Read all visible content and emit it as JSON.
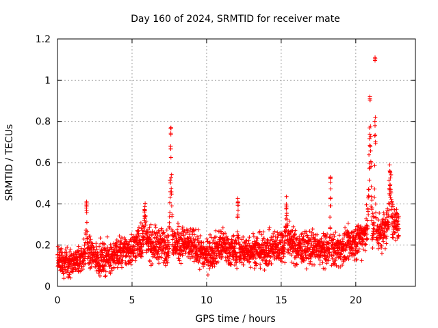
{
  "chart_data": {
    "type": "scatter",
    "title": "Day 160 of 2024, SRMTID for receiver mate",
    "xlabel": "GPS time / hours",
    "ylabel": "SRMTID / TECUs",
    "xlim": [
      0,
      24
    ],
    "ylim": [
      0,
      1.2
    ],
    "x_ticks": [
      0,
      5,
      10,
      15,
      20
    ],
    "x_tick_labels": [
      "0",
      "5",
      "10",
      "15",
      "20"
    ],
    "y_ticks": [
      0,
      0.2,
      0.4,
      0.6,
      0.8,
      1,
      1.2
    ],
    "y_tick_labels": [
      "0",
      "0.2",
      "0.4",
      "0.6",
      "0.8",
      "1",
      "1.2"
    ],
    "grid": true,
    "marker": "+",
    "series": [
      {
        "name": "SRMTID",
        "color": "#ff0000",
        "x_start": 0,
        "x_end": 22.9,
        "samples_per_hour": 120,
        "baseline": [
          [
            0,
            0.12
          ],
          [
            1,
            0.11
          ],
          [
            1.5,
            0.13
          ],
          [
            2,
            0.17
          ],
          [
            2.5,
            0.14
          ],
          [
            3,
            0.13
          ],
          [
            4,
            0.16
          ],
          [
            5,
            0.18
          ],
          [
            5.5,
            0.22
          ],
          [
            6,
            0.21
          ],
          [
            7,
            0.2
          ],
          [
            7.5,
            0.19
          ],
          [
            8,
            0.21
          ],
          [
            9,
            0.2
          ],
          [
            10,
            0.15
          ],
          [
            11,
            0.2
          ],
          [
            12,
            0.16
          ],
          [
            13,
            0.18
          ],
          [
            14,
            0.17
          ],
          [
            15,
            0.2
          ],
          [
            15.5,
            0.23
          ],
          [
            16,
            0.18
          ],
          [
            17,
            0.19
          ],
          [
            18,
            0.17
          ],
          [
            19,
            0.18
          ],
          [
            20,
            0.22
          ],
          [
            20.5,
            0.25
          ],
          [
            21,
            0.3
          ],
          [
            21.5,
            0.25
          ],
          [
            22,
            0.28
          ],
          [
            22.9,
            0.32
          ]
        ],
        "spikes": [
          {
            "x": 1.95,
            "width": 0.06,
            "peak": 0.41
          },
          {
            "x": 5.85,
            "width": 0.1,
            "peak": 0.37
          },
          {
            "x": 7.6,
            "width": 0.1,
            "peak": 0.77
          },
          {
            "x": 12.1,
            "width": 0.06,
            "peak": 0.41
          },
          {
            "x": 15.35,
            "width": 0.08,
            "peak": 0.39
          },
          {
            "x": 18.3,
            "width": 0.05,
            "peak": 0.53
          },
          {
            "x": 20.95,
            "width": 0.12,
            "peak": 0.92
          },
          {
            "x": 21.3,
            "width": 0.05,
            "peak": 1.11
          },
          {
            "x": 22.3,
            "width": 0.15,
            "peak": 0.56
          }
        ]
      }
    ]
  }
}
